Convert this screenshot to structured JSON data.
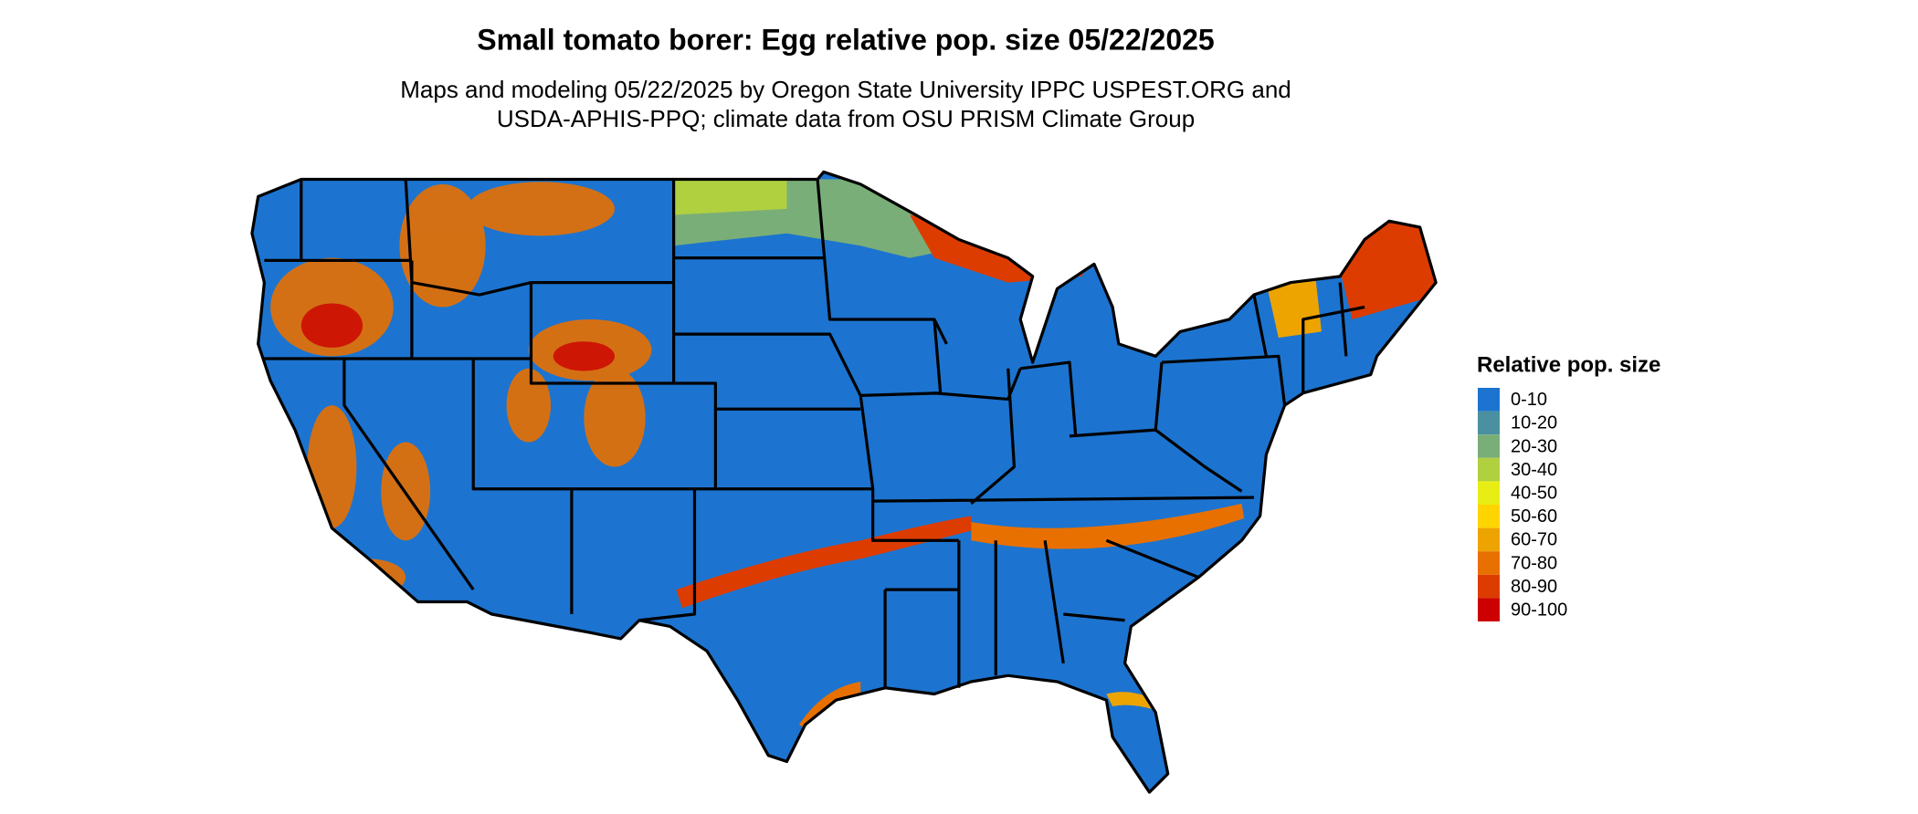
{
  "title": "Small tomato borer: Egg relative pop. size 05/22/2025",
  "subtitle": [
    "Maps and modeling 05/22/2025 by Oregon State University IPPC USPEST.ORG and",
    "USDA-APHIS-PPQ; climate data from OSU PRISM Climate Group"
  ],
  "legend": {
    "title": "Relative pop. size",
    "items": [
      {
        "label": "0-10",
        "color": "#1c74d0"
      },
      {
        "label": "10-20",
        "color": "#4a90a0"
      },
      {
        "label": "20-30",
        "color": "#7aae78"
      },
      {
        "label": "30-40",
        "color": "#b0d040"
      },
      {
        "label": "40-50",
        "color": "#e8ee14"
      },
      {
        "label": "50-60",
        "color": "#ffd400"
      },
      {
        "label": "60-70",
        "color": "#eea400"
      },
      {
        "label": "70-80",
        "color": "#e87000"
      },
      {
        "label": "80-90",
        "color": "#dd3c00"
      },
      {
        "label": "90-100",
        "color": "#cc0000"
      }
    ]
  }
}
